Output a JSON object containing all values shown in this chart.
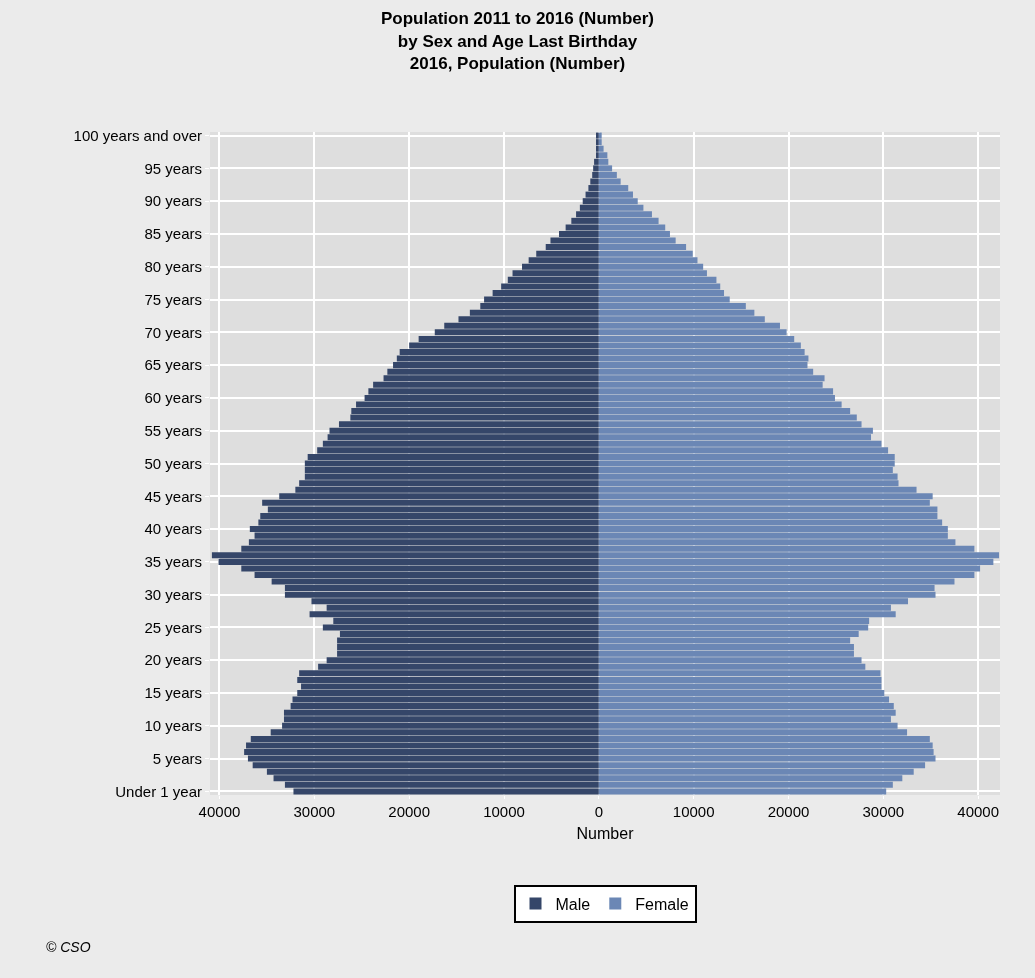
{
  "chart_data": {
    "type": "bar",
    "orientation": "horizontal",
    "title": "Population 2011 to 2016 (Number)\nby Sex and Age Last Birthday\n2016, Population (Number)",
    "xlabel": "Number",
    "categories": [
      "100 years and over",
      null,
      null,
      null,
      null,
      "95 years",
      null,
      null,
      null,
      null,
      "90 years",
      null,
      null,
      null,
      null,
      "85 years",
      null,
      null,
      null,
      null,
      "80 years",
      null,
      null,
      null,
      null,
      "75 years",
      null,
      null,
      null,
      null,
      "70 years",
      null,
      null,
      null,
      null,
      "65 years",
      null,
      null,
      null,
      null,
      "60 years",
      null,
      null,
      null,
      null,
      "55 years",
      null,
      null,
      null,
      null,
      "50 years",
      null,
      null,
      null,
      null,
      "45 years",
      null,
      null,
      null,
      null,
      "40 years",
      null,
      null,
      null,
      null,
      "35 years",
      null,
      null,
      null,
      null,
      "30 years",
      null,
      null,
      null,
      null,
      "25 years",
      null,
      null,
      null,
      null,
      "20 years",
      null,
      null,
      null,
      null,
      "15 years",
      null,
      null,
      null,
      null,
      "10 years",
      null,
      null,
      null,
      null,
      "5 years",
      null,
      null,
      null,
      null,
      "Under 1 year"
    ],
    "series": [
      {
        "name": "Male",
        "color": "#354669",
        "values": [
          -300,
          -300,
          -300,
          -300,
          -500,
          -600,
          -700,
          -900,
          -1100,
          -1400,
          -1700,
          -2000,
          -2400,
          -2900,
          -3500,
          -4200,
          -5100,
          -5600,
          -6600,
          -7400,
          -8100,
          -9100,
          -9600,
          -10300,
          -11200,
          -12100,
          -12500,
          -13600,
          -14800,
          -16300,
          -17300,
          -19000,
          -20000,
          -21000,
          -21300,
          -21700,
          -22300,
          -22700,
          -23800,
          -24300,
          -24700,
          -25600,
          -26100,
          -26200,
          -27400,
          -28400,
          -28600,
          -29100,
          -29700,
          -30700,
          -31000,
          -31000,
          -31000,
          -31600,
          -32000,
          -33700,
          -35500,
          -34900,
          -35700,
          -35900,
          -36800,
          -36300,
          -36900,
          -37700,
          -40800,
          -40100,
          -37700,
          -36300,
          -34500,
          -33100,
          -33100,
          -30300,
          -28700,
          -30500,
          -28000,
          -29100,
          -27300,
          -27600,
          -27600,
          -27600,
          -28700,
          -29600,
          -31600,
          -31800,
          -31400,
          -31800,
          -32300,
          -32500,
          -33200,
          -33200,
          -33400,
          -34600,
          -36700,
          -37200,
          -37400,
          -37000,
          -36500,
          -35000,
          -34300,
          -33100,
          -32200
        ]
      },
      {
        "name": "Female",
        "color": "#6b87b5",
        "values": [
          300,
          300,
          500,
          900,
          1000,
          1400,
          1900,
          2300,
          3100,
          3600,
          4100,
          4700,
          5600,
          6300,
          7000,
          7500,
          8100,
          9200,
          9900,
          10400,
          11000,
          11400,
          12400,
          12800,
          13200,
          13800,
          15500,
          16400,
          17500,
          19100,
          19800,
          20600,
          21300,
          21700,
          22100,
          22000,
          22600,
          23800,
          23600,
          24700,
          24900,
          25600,
          26500,
          27200,
          27700,
          28900,
          28700,
          29800,
          30500,
          31200,
          31200,
          31000,
          31500,
          31600,
          33500,
          35200,
          34900,
          35700,
          35700,
          36200,
          36800,
          36800,
          37600,
          39600,
          42200,
          41600,
          40200,
          39600,
          37500,
          35400,
          35500,
          32600,
          30800,
          31300,
          28500,
          28400,
          27400,
          26500,
          26900,
          26900,
          27700,
          28100,
          29700,
          29800,
          29800,
          30100,
          30600,
          31100,
          31300,
          30800,
          31500,
          32500,
          34900,
          35200,
          35300,
          35500,
          34400,
          33200,
          32000,
          31000,
          30300
        ]
      }
    ],
    "xlim": [
      -41000,
      42300
    ],
    "xticks": [
      {
        "value": -40000,
        "label": "40000"
      },
      {
        "value": -30000,
        "label": "30000"
      },
      {
        "value": -20000,
        "label": "20000"
      },
      {
        "value": -10000,
        "label": "10000"
      },
      0,
      10000,
      20000,
      30000,
      40000
    ],
    "stacked": true,
    "grid": true,
    "legend": "bottom",
    "annotations": [
      "© CSO"
    ]
  }
}
